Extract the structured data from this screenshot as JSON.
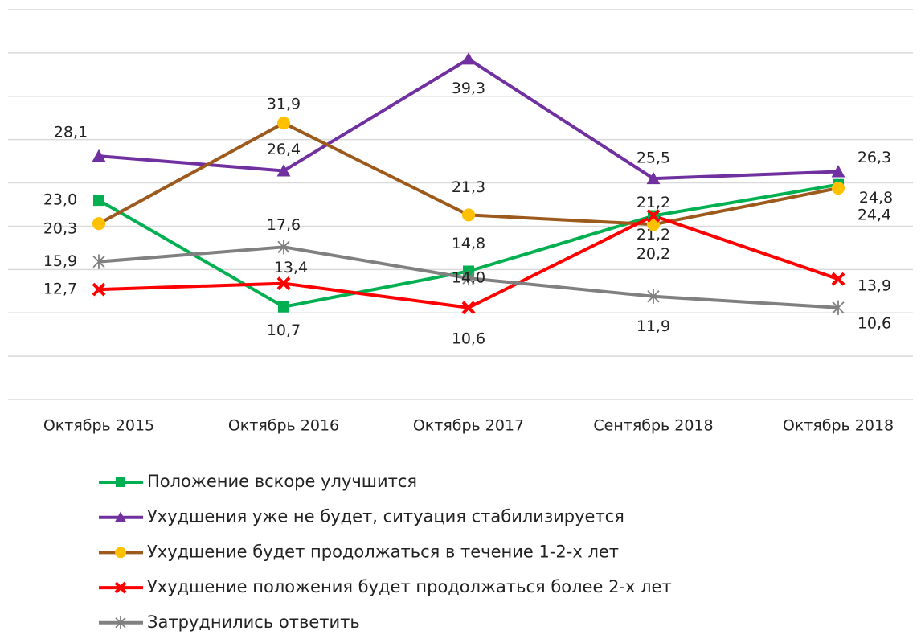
{
  "chart_data": {
    "type": "line",
    "categories": [
      "Октябрь 2015",
      "Октябрь 2016",
      "Октябрь 2017",
      "Сентябрь 2018",
      "Октябрь 2018"
    ],
    "ylim": [
      0,
      45
    ],
    "yticks": [
      0,
      5,
      10,
      15,
      20,
      25,
      30,
      35,
      40,
      45
    ],
    "grid": true,
    "series": [
      {
        "name": "Положение вскоре улучшится",
        "color": "#00b050",
        "marker": "square",
        "values": [
          23.0,
          10.7,
          14.8,
          21.2,
          24.8
        ],
        "value_labels": [
          "23,0",
          "10,7",
          "14,8",
          "21,2",
          "24,8"
        ]
      },
      {
        "name": "Ухудшения уже не будет, ситуация стабилизируется",
        "color": "#7030a0",
        "marker": "triangle",
        "values": [
          28.1,
          26.4,
          39.3,
          25.5,
          26.3
        ],
        "value_labels": [
          "28,1",
          "26,4",
          "39,3",
          "25,5",
          "26,3"
        ]
      },
      {
        "name": "Ухудшение будет продолжаться в течение 1-2-х лет",
        "color": "#9c5a1d",
        "marker_color": "#ffc000",
        "marker": "circle",
        "values": [
          20.3,
          31.9,
          21.3,
          20.2,
          24.4
        ],
        "value_labels": [
          "20,3",
          "31,9",
          "21,3",
          "20,2",
          "24,4"
        ]
      },
      {
        "name": "Ухудшение положения будет продолжаться более 2-х лет",
        "color": "#ff0000",
        "marker": "x",
        "values": [
          12.7,
          13.4,
          10.6,
          21.2,
          13.9
        ],
        "value_labels": [
          "12,7",
          "13,4",
          "10,6",
          "21,2",
          "13,9"
        ]
      },
      {
        "name": "Затруднились ответить",
        "color": "#808080",
        "marker": "star",
        "values": [
          15.9,
          17.6,
          14.0,
          11.9,
          10.6
        ],
        "value_labels": [
          "15,9",
          "17,6",
          "14,0",
          "11,9",
          "10,6"
        ]
      }
    ]
  }
}
